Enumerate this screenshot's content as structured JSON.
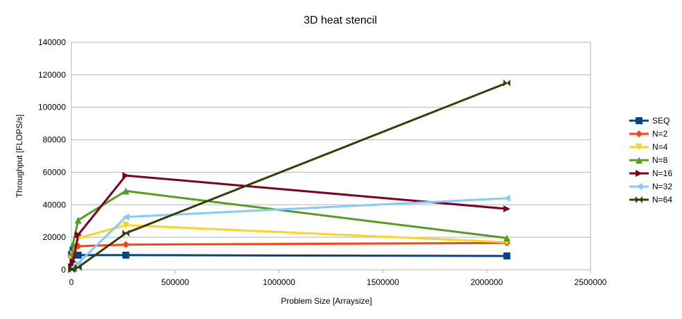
{
  "chart_data": {
    "type": "line",
    "title": "3D heat stencil",
    "xlabel": "Problem Size [Arraysize]",
    "ylabel": "Throughput [FLOPS/s]",
    "xlim": [
      0,
      2500000
    ],
    "ylim": [
      0,
      140000
    ],
    "xticks": [
      0,
      500000,
      1000000,
      1500000,
      2000000,
      2500000
    ],
    "yticks": [
      0,
      20000,
      40000,
      60000,
      80000,
      100000,
      120000,
      140000
    ],
    "xtick_labels": [
      "0",
      "500000",
      "1000000",
      "1500000",
      "2000000",
      "2500000"
    ],
    "ytick_labels": [
      "0",
      "20000",
      "40000",
      "60000",
      "80000",
      "100000",
      "120000",
      "140000"
    ],
    "grid": "horizontal",
    "legend_position": "right",
    "x": [
      1000,
      8000,
      32768,
      262144,
      2097152
    ],
    "series": [
      {
        "name": "SEQ",
        "color": "#004586",
        "marker": "square",
        "values": [
          9500,
          12000,
          9000,
          9000,
          8500
        ]
      },
      {
        "name": "N=2",
        "color": "#ff420e",
        "marker": "diamond",
        "values": [
          9000,
          11000,
          14500,
          15500,
          16500
        ]
      },
      {
        "name": "N=4",
        "color": "#ffd320",
        "marker": "triangle-down",
        "values": [
          6500,
          9500,
          19500,
          27500,
          17000
        ]
      },
      {
        "name": "N=8",
        "color": "#579d1c",
        "marker": "triangle-up",
        "values": [
          3500,
          16000,
          30500,
          48500,
          19500
        ]
      },
      {
        "name": "N=16",
        "color": "#7e0021",
        "marker": "triangle-right",
        "values": [
          2000,
          5000,
          21500,
          58000,
          37500
        ]
      },
      {
        "name": "N=32",
        "color": "#83caff",
        "marker": "triangle-left",
        "values": [
          500,
          1500,
          4000,
          32500,
          44000
        ]
      },
      {
        "name": "N=64",
        "color": "#314004",
        "marker": "bowtie",
        "values": [
          0,
          500,
          1500,
          22500,
          115000
        ]
      }
    ]
  }
}
